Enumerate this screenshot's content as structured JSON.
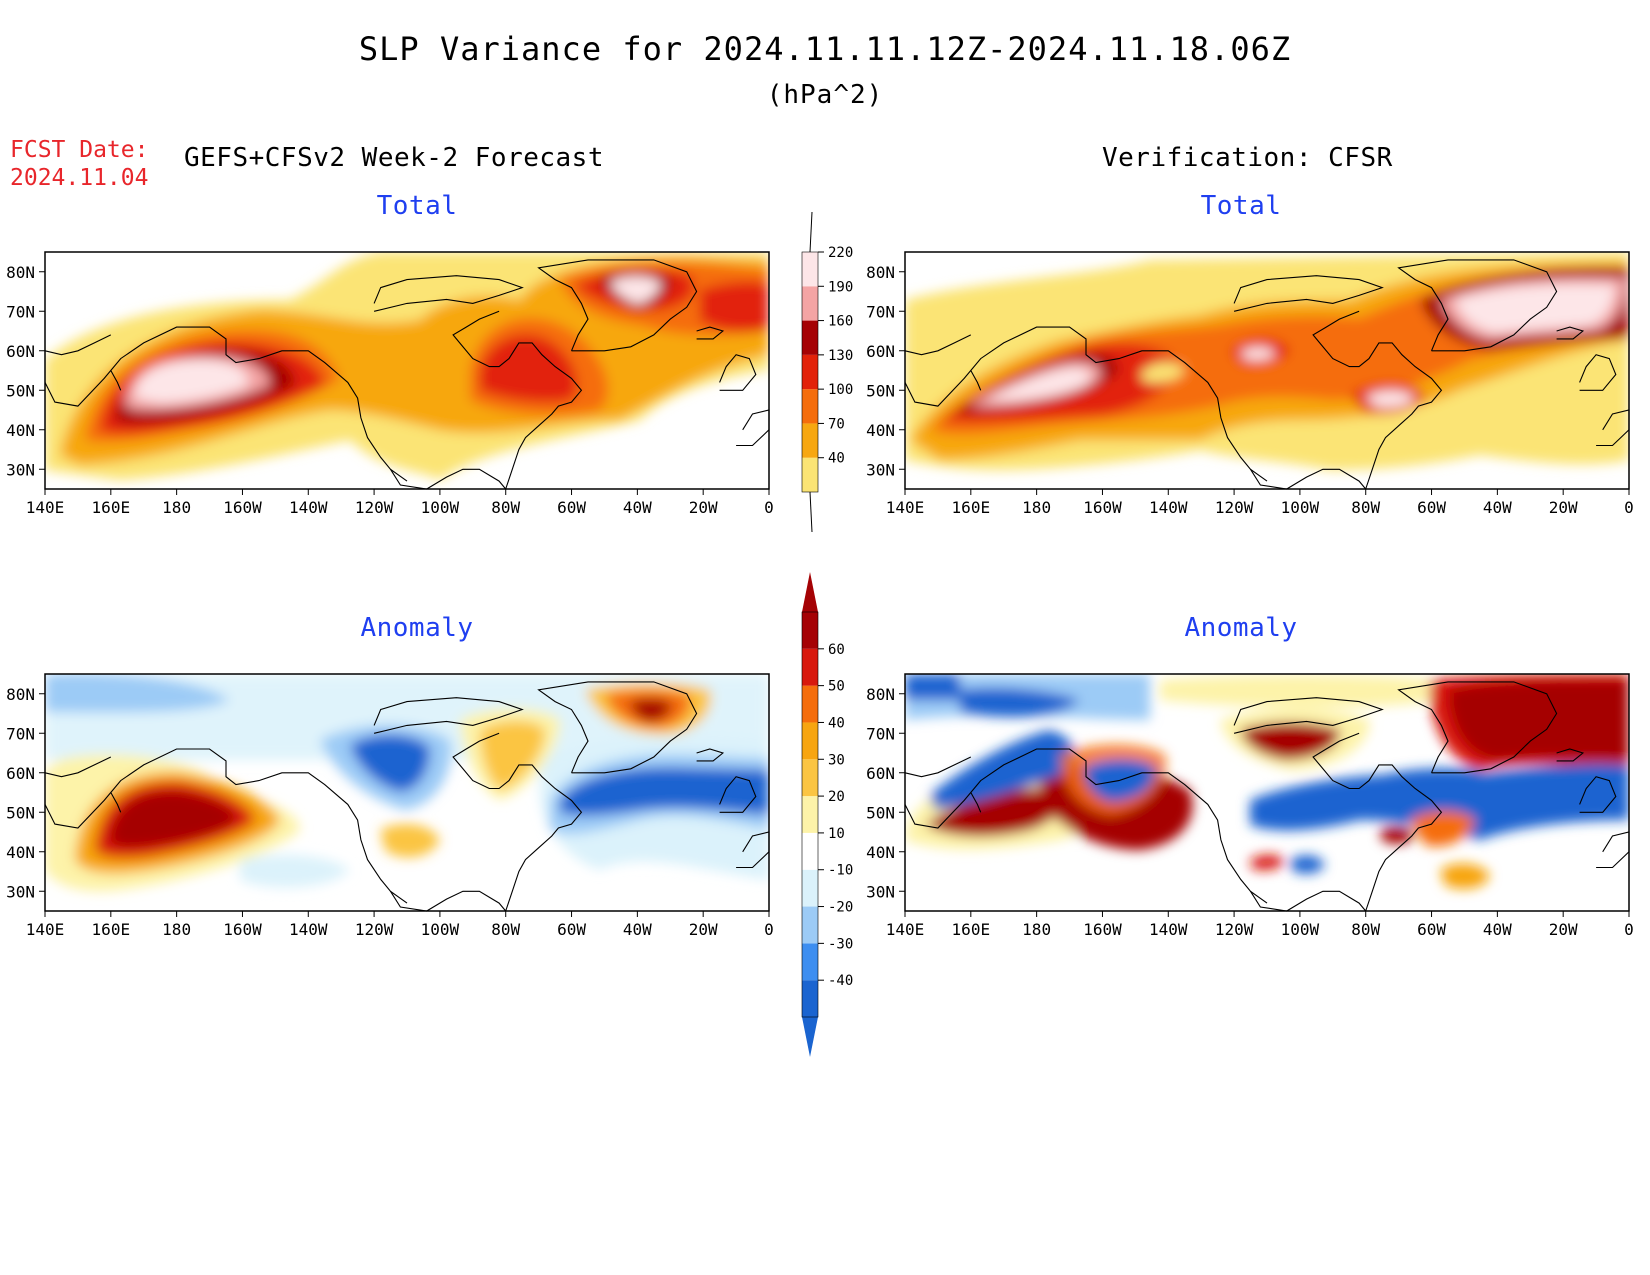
{
  "header": {
    "title": "SLP Variance for 2024.11.11.12Z-2024.11.18.06Z",
    "units": "(hPa^2)",
    "fcst_date_label": "FCST Date:",
    "fcst_date_value": "2024.11.04",
    "forecast_title": "GEFS+CFSv2 Week-2 Forecast",
    "verification_title": "Verification: CFSR"
  },
  "panels": {
    "forecast_total_title": "Total",
    "verification_total_title": "Total",
    "forecast_anomaly_title": "Anomaly",
    "verification_anomaly_title": "Anomaly"
  },
  "axes": {
    "lon_labels": [
      "140E",
      "160E",
      "180",
      "160W",
      "140W",
      "120W",
      "100W",
      "80W",
      "60W",
      "40W",
      "20W",
      "0"
    ],
    "lat_labels": [
      "80N",
      "70N",
      "60N",
      "50N",
      "40N",
      "30N"
    ],
    "lon_range": [
      140,
      360
    ],
    "lat_range": [
      25,
      85
    ]
  },
  "colorbars": {
    "total": {
      "levels": [
        "40",
        "70",
        "100",
        "130",
        "160",
        "190",
        "220"
      ],
      "colors": [
        "#fbe474",
        "#f7a711",
        "#f56d0c",
        "#e2220a",
        "#a50205",
        "#f4a4a4",
        "#fde6e8"
      ]
    },
    "anomaly": {
      "levels": [
        "-40",
        "-30",
        "-20",
        "-10",
        "10",
        "20",
        "30",
        "40",
        "50",
        "60"
      ],
      "colors": [
        "#1a64d0",
        "#3d8ef0",
        "#9ccbf6",
        "#dbf2fb",
        "#ffffff",
        "#fdf3a9",
        "#fbc543",
        "#f7a511",
        "#f56d0c",
        "#d8180d",
        "#a50205"
      ]
    }
  },
  "colors": {
    "fcst_red": "#e8262b",
    "panel_title_blue": "#1f3ff0"
  }
}
